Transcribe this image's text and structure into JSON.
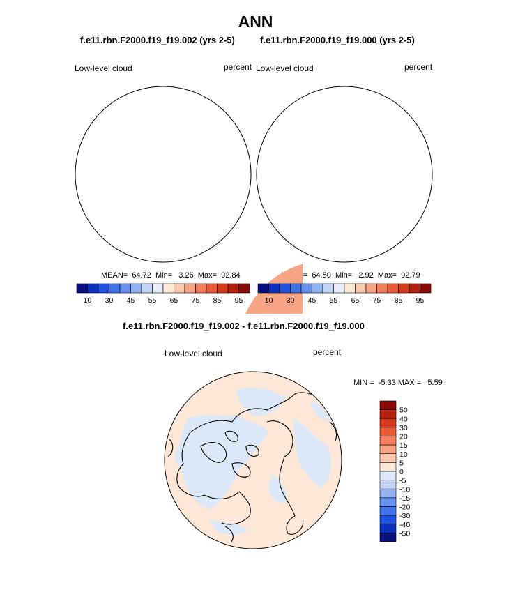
{
  "chart_data": {
    "type": "heatmap",
    "title": "ANN",
    "panels": [
      {
        "subtitle": "f.e11.rbn.F2000.f19_f19.002 (yrs 2-5)",
        "variable": "Low-level cloud",
        "units": "percent",
        "stats": {
          "mean": "64.72",
          "min": "3.26",
          "max": "92.84"
        },
        "stats_text": "MEAN=  64.72  Min=   3.26  Max=  92.84",
        "colorbar": {
          "levels": [
            5,
            10,
            20,
            30,
            40,
            45,
            50,
            55,
            60,
            65,
            70,
            75,
            80,
            85,
            90,
            95
          ],
          "tick_labels": [
            "10",
            "30",
            "45",
            "55",
            "65",
            "75",
            "85",
            "95"
          ],
          "colors": [
            "#08107f",
            "#0a2fbf",
            "#1f52e0",
            "#3f73ea",
            "#6792ee",
            "#93b2f2",
            "#c2d5f7",
            "#e7eef9",
            "#fdebd9",
            "#fbc9ad",
            "#f8a585",
            "#f47e5c",
            "#eb5a37",
            "#d6391c",
            "#b4200e",
            "#8a0a06"
          ]
        }
      },
      {
        "subtitle": "f.e11.rbn.F2000.f19_f19.000 (yrs 2-5)",
        "variable": "Low-level cloud",
        "units": "percent",
        "stats": {
          "mean": "64.50",
          "min": "2.92",
          "max": "92.79"
        },
        "stats_text": "MEAN=  64.50  Min=   2.92  Max=  92.79",
        "colorbar": {
          "levels": [
            5,
            10,
            20,
            30,
            40,
            45,
            50,
            55,
            60,
            65,
            70,
            75,
            80,
            85,
            90,
            95
          ],
          "tick_labels": [
            "10",
            "30",
            "45",
            "55",
            "65",
            "75",
            "85",
            "95"
          ],
          "colors": [
            "#08107f",
            "#0a2fbf",
            "#1f52e0",
            "#3f73ea",
            "#6792ee",
            "#93b2f2",
            "#c2d5f7",
            "#e7eef9",
            "#fdebd9",
            "#fbc9ad",
            "#f8a585",
            "#f47e5c",
            "#eb5a37",
            "#d6391c",
            "#b4200e",
            "#8a0a06"
          ]
        }
      },
      {
        "subtitle": "f.e11.rbn.F2000.f19_f19.002 - f.e11.rbn.F2000.f19_f19.000",
        "variable": "Low-level cloud",
        "units": "percent",
        "stats": {
          "min": "-5.33",
          "max": "5.59"
        },
        "stats_text": "MIN =  -5.33 MAX =   5.59",
        "colorbar": {
          "tick_labels": [
            "50",
            "40",
            "30",
            "20",
            "15",
            "10",
            "5",
            "0",
            "-5",
            "-10",
            "-15",
            "-20",
            "-30",
            "-40",
            "-50"
          ],
          "colors": [
            "#8a0a06",
            "#b4200e",
            "#d6391c",
            "#eb5a37",
            "#f47e5c",
            "#f8a585",
            "#fbc9ad",
            "#fde7d6",
            "#dce8f8",
            "#c2d5f7",
            "#93b2f2",
            "#6792ee",
            "#3f73ea",
            "#1f52e0",
            "#0a2fbf",
            "#08107f"
          ]
        }
      }
    ]
  }
}
